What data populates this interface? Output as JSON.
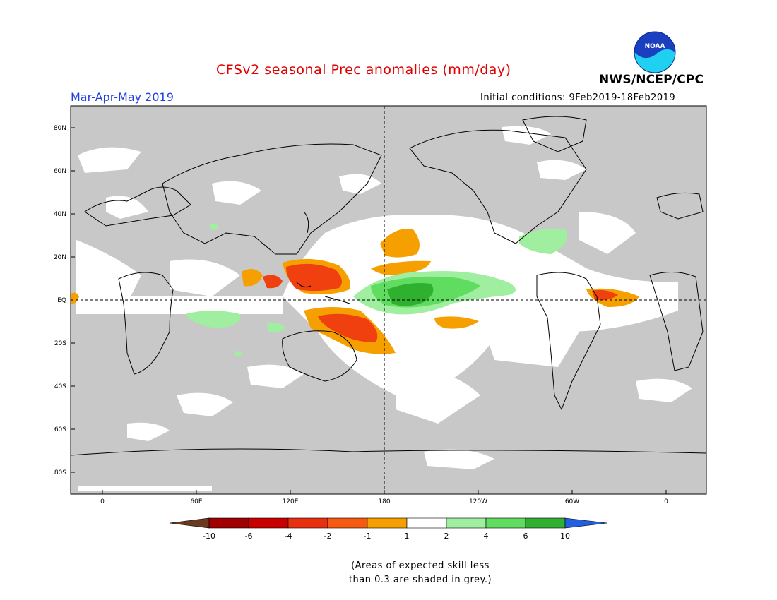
{
  "header": {
    "title": "CFSv2 seasonal Prec anomalies (mm/day)",
    "season": "Mar-Apr-May 2019",
    "initial_conditions": "Initial conditions: 9Feb2019-18Feb2019",
    "agency": "NWS/NCEP/CPC",
    "logo_text": "NOAA"
  },
  "map": {
    "lat_labels": [
      "80N",
      "60N",
      "40N",
      "20N",
      "EQ",
      "20S",
      "40S",
      "60S",
      "80S"
    ],
    "lon_labels": [
      "0",
      "60E",
      "120E",
      "180",
      "120W",
      "60W",
      "0"
    ],
    "colors": {
      "grey_low_skill": "#c8c8c8",
      "neg_10": "#6b3a1e",
      "neg_6": "#a00000",
      "neg_4": "#d21010",
      "neg_2": "#f04010",
      "neg_1": "#f5a000",
      "pos_1": "#a0eea0",
      "pos_2": "#60dd60",
      "pos_4": "#3bbf3b",
      "pos_6": "#1e9f1e",
      "pos_10": "#1f60dd"
    }
  },
  "colorbar": {
    "labels": [
      "-10",
      "-6",
      "-4",
      "-2",
      "-1",
      "1",
      "2",
      "4",
      "6",
      "10"
    ],
    "swatches": [
      "#a00000",
      "#c80000",
      "#e83010",
      "#f55a10",
      "#f5a000",
      "#ffffff",
      "#a0eea0",
      "#60dd60",
      "#30b030",
      "#109610"
    ],
    "end_low_color": "#6b3a1e",
    "end_high_color": "#2060e0"
  },
  "note": {
    "line1": "(Areas of expected skill less",
    "line2": "than 0.3 are shaded in grey.)"
  }
}
